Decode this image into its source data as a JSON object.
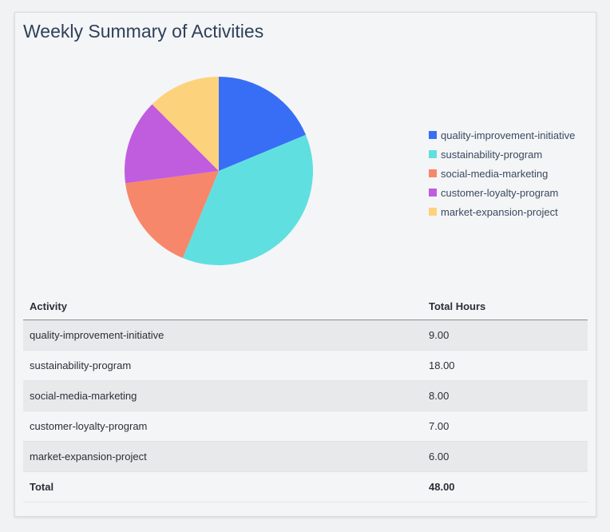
{
  "chart_data": {
    "type": "pie",
    "title": "Weekly Summary of Activities",
    "legend_position": "right",
    "categories": [
      "quality-improvement-initiative",
      "sustainability-program",
      "social-media-marketing",
      "customer-loyalty-program",
      "market-expansion-project"
    ],
    "values": [
      9,
      18,
      8,
      7,
      6
    ],
    "colors": [
      "#376ef5",
      "#60dfe0",
      "#f7876a",
      "#c05ddf",
      "#fdd27c"
    ]
  },
  "table": {
    "headers": [
      "Activity",
      "Total Hours"
    ],
    "rows": [
      [
        "quality-improvement-initiative",
        "9.00"
      ],
      [
        "sustainability-program",
        "18.00"
      ],
      [
        "social-media-marketing",
        "8.00"
      ],
      [
        "customer-loyalty-program",
        "7.00"
      ],
      [
        "market-expansion-project",
        "6.00"
      ]
    ],
    "total": [
      "Total",
      "48.00"
    ]
  }
}
